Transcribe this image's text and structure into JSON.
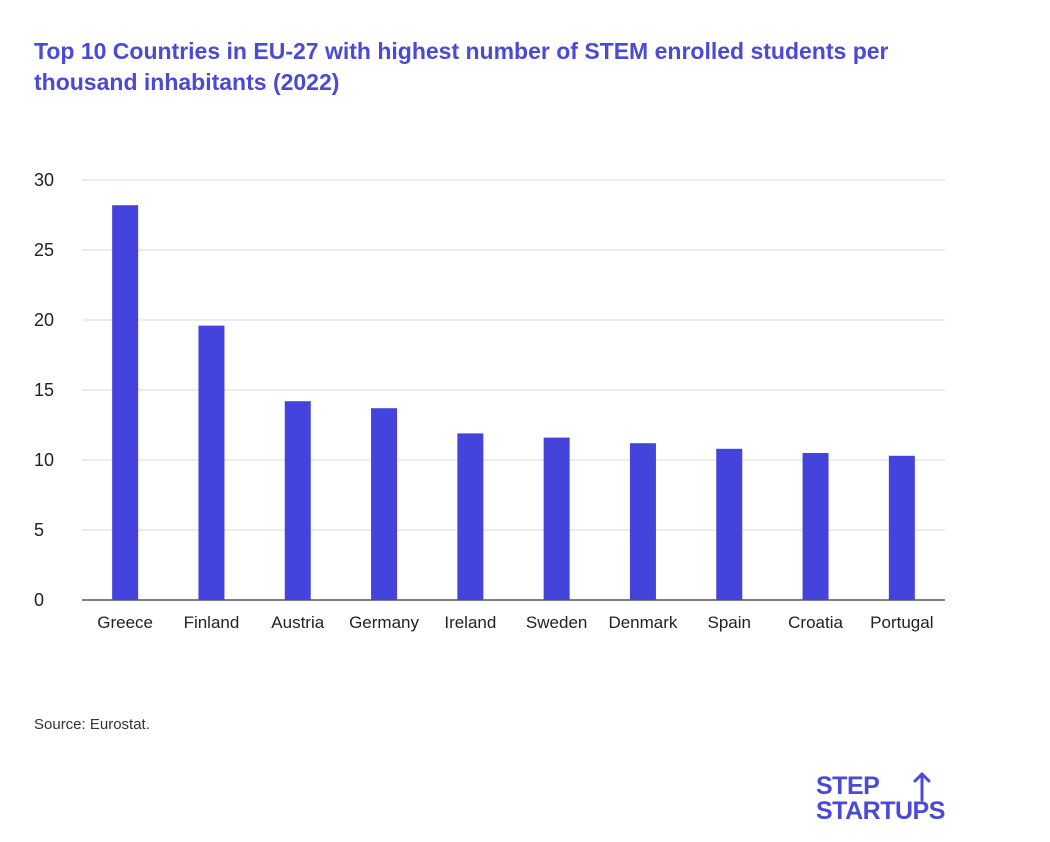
{
  "title": "Top 10 Countries in EU-27 with highest number of STEM enrolled students per thousand inhabitants (2022)",
  "source": "Source: Eurostat.",
  "logo": {
    "line1": "STEP",
    "line2": "STARTUPS"
  },
  "colors": {
    "bar": "#4444DD",
    "title": "#4A4AD6",
    "grid": "#d9d9d9",
    "axis": "#333333"
  },
  "chart_data": {
    "type": "bar",
    "categories": [
      "Greece",
      "Finland",
      "Austria",
      "Germany",
      "Ireland",
      "Sweden",
      "Denmark",
      "Spain",
      "Croatia",
      "Portugal"
    ],
    "values": [
      28.2,
      19.6,
      14.2,
      13.7,
      11.9,
      11.6,
      11.2,
      10.8,
      10.5,
      10.3
    ],
    "yticks": [
      0,
      5,
      10,
      15,
      20,
      25,
      30
    ],
    "ylim": [
      0,
      30
    ],
    "grid": true,
    "legend": "none"
  }
}
